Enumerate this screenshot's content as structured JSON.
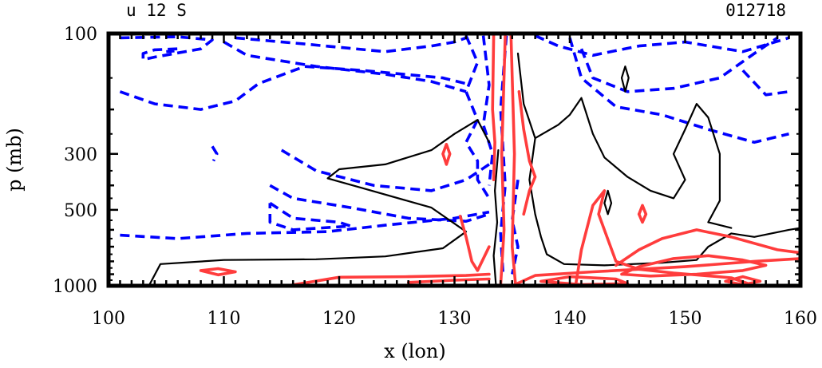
{
  "header": {
    "left": "u 12 S",
    "right": "012718"
  },
  "chart_data": {
    "type": "contour",
    "xlabel": "x (lon)",
    "ylabel": "p (mb)",
    "xlim": [
      100,
      160
    ],
    "ylim": [
      1000,
      100
    ],
    "yscale": "log",
    "x_ticks": [
      100,
      110,
      120,
      130,
      140,
      150,
      160
    ],
    "x_tick_labels": [
      "100",
      "110",
      "120",
      "130",
      "140",
      "150",
      "160"
    ],
    "y_ticks": [
      100,
      300,
      500,
      1000
    ],
    "y_tick_labels": [
      "100",
      "300",
      "500",
      "1000"
    ],
    "colors": {
      "negative": "#0000ff",
      "zero": "#000000",
      "positive": "#ff3c3c"
    },
    "contours": [
      {
        "sign": "negative",
        "style": "dashed",
        "points": [
          [
            101,
            104
          ],
          [
            106,
            103
          ],
          [
            109,
            106
          ],
          [
            108,
            115
          ],
          [
            104,
            124
          ],
          [
            103,
            127
          ],
          [
            103,
            120
          ],
          [
            104,
            116
          ],
          [
            106,
            115
          ],
          [
            106,
            117
          ],
          [
            105,
            118
          ]
        ]
      },
      {
        "sign": "negative",
        "style": "dashed",
        "points": [
          [
            101,
            170
          ],
          [
            104,
            190
          ],
          [
            108,
            200
          ],
          [
            111,
            185
          ],
          [
            113,
            158
          ],
          [
            117,
            135
          ],
          [
            122,
            140
          ],
          [
            129,
            150
          ],
          [
            131,
            158
          ]
        ]
      },
      {
        "sign": "negative",
        "style": "dashed",
        "points": [
          [
            111,
            104
          ],
          [
            117,
            110
          ],
          [
            124,
            118
          ],
          [
            128,
            112
          ],
          [
            130,
            108
          ],
          [
            131,
            104
          ]
        ]
      },
      {
        "sign": "negative",
        "style": "dashed",
        "points": [
          [
            110,
            108
          ],
          [
            112,
            122
          ],
          [
            118,
            135
          ],
          [
            124,
            145
          ],
          [
            128,
            155
          ],
          [
            131,
            170
          ]
        ]
      },
      {
        "sign": "negative",
        "style": "dashed",
        "points": [
          [
            101,
            630
          ],
          [
            106,
            650
          ],
          [
            112,
            620
          ],
          [
            119,
            610
          ],
          [
            124,
            575
          ],
          [
            130,
            540
          ],
          [
            133,
            510
          ]
        ]
      },
      {
        "sign": "negative",
        "style": "dashed",
        "points": [
          [
            114,
            400
          ],
          [
            116,
            450
          ],
          [
            121,
            490
          ],
          [
            126,
            540
          ],
          [
            131,
            555
          ],
          [
            133,
            520
          ]
        ]
      },
      {
        "sign": "negative",
        "style": "dashed",
        "points": [
          [
            115,
            290
          ],
          [
            118,
            350
          ],
          [
            123,
            400
          ],
          [
            128,
            420
          ],
          [
            131,
            380
          ],
          [
            133,
            330
          ]
        ]
      },
      {
        "sign": "negative",
        "style": "dashed",
        "points": [
          [
            114,
            470
          ],
          [
            116,
            540
          ],
          [
            120,
            560
          ],
          [
            121,
            580
          ],
          [
            116,
            600
          ],
          [
            114,
            560
          ],
          [
            114,
            470
          ]
        ]
      },
      {
        "sign": "negative",
        "style": "dashed",
        "points": [
          [
            131,
            102
          ],
          [
            132,
            130
          ],
          [
            131,
            170
          ],
          [
            132,
            220
          ],
          [
            131,
            270
          ],
          [
            132,
            320
          ],
          [
            132,
            380
          ],
          [
            133,
            450
          ]
        ]
      },
      {
        "sign": "negative",
        "style": "dashed",
        "points": [
          [
            132.5,
            102
          ],
          [
            133,
            160
          ],
          [
            132.5,
            230
          ],
          [
            133.3,
            300
          ],
          [
            133,
            400
          ]
        ]
      },
      {
        "sign": "negative",
        "style": "dashed",
        "points": [
          [
            134.5,
            102
          ],
          [
            134,
            200
          ],
          [
            134.4,
            400
          ],
          [
            134,
            620
          ],
          [
            134.2,
            880
          ]
        ]
      },
      {
        "sign": "negative",
        "style": "dashed",
        "points": [
          [
            135.5,
            380
          ],
          [
            135,
            550
          ],
          [
            135.5,
            700
          ],
          [
            135,
            900
          ]
        ]
      },
      {
        "sign": "negative",
        "style": "dashed",
        "points": [
          [
            137,
            102
          ],
          [
            139,
            112
          ],
          [
            142,
            122
          ],
          [
            146,
            112
          ],
          [
            150,
            108
          ],
          [
            155,
            118
          ],
          [
            159,
            104
          ]
        ]
      },
      {
        "sign": "negative",
        "style": "dashed",
        "points": [
          [
            140,
            104
          ],
          [
            141,
            150
          ],
          [
            144,
            195
          ],
          [
            148,
            210
          ],
          [
            152,
            240
          ],
          [
            156,
            270
          ],
          [
            159,
            250
          ]
        ]
      },
      {
        "sign": "negative",
        "style": "dashed",
        "points": [
          [
            141,
            115
          ],
          [
            142,
            150
          ],
          [
            145,
            170
          ],
          [
            149,
            165
          ],
          [
            153,
            150
          ],
          [
            156,
            120
          ],
          [
            158,
            104
          ]
        ]
      },
      {
        "sign": "negative",
        "style": "dashed",
        "points": [
          [
            155,
            140
          ],
          [
            157,
            175
          ],
          [
            159,
            170
          ]
        ]
      },
      {
        "sign": "negative",
        "style": "dashed",
        "points": [
          [
            109,
            280
          ],
          [
            109.4,
            300
          ],
          [
            109.1,
            320
          ]
        ]
      },
      {
        "sign": "zero",
        "style": "solid",
        "points": [
          [
            103.5,
            1000
          ],
          [
            104.5,
            820
          ],
          [
            110,
            790
          ],
          [
            118,
            785
          ],
          [
            124,
            765
          ],
          [
            129,
            710
          ],
          [
            131,
            610
          ],
          [
            128,
            490
          ],
          [
            122,
            410
          ],
          [
            119,
            375
          ],
          [
            120,
            345
          ],
          [
            124,
            330
          ],
          [
            128,
            290
          ],
          [
            130,
            250
          ],
          [
            132,
            220
          ],
          [
            133,
            270
          ]
        ]
      },
      {
        "sign": "zero",
        "style": "solid",
        "points": [
          [
            133.8,
            290
          ],
          [
            133.5,
            420
          ],
          [
            133.7,
            560
          ],
          [
            133.4,
            760
          ],
          [
            133.6,
            1000
          ]
        ]
      },
      {
        "sign": "zero",
        "style": "solid",
        "points": [
          [
            135.5,
            120
          ],
          [
            136,
            190
          ],
          [
            137,
            260
          ],
          [
            136.5,
            380
          ],
          [
            137,
            520
          ],
          [
            137.5,
            640
          ],
          [
            138,
            750
          ],
          [
            139.5,
            820
          ],
          [
            143,
            830
          ],
          [
            148,
            810
          ],
          [
            151,
            790
          ],
          [
            152,
            700
          ],
          [
            154,
            620
          ],
          [
            156,
            640
          ],
          [
            159,
            600
          ],
          [
            160,
            590
          ]
        ]
      },
      {
        "sign": "zero",
        "style": "solid",
        "points": [
          [
            137,
            260
          ],
          [
            139,
            230
          ],
          [
            140,
            210
          ],
          [
            141,
            180
          ],
          [
            142,
            250
          ],
          [
            143,
            310
          ],
          [
            145,
            370
          ],
          [
            147,
            420
          ],
          [
            149,
            450
          ],
          [
            150,
            380
          ],
          [
            149,
            300
          ],
          [
            150,
            240
          ],
          [
            151,
            190
          ],
          [
            152,
            215
          ],
          [
            153,
            300
          ],
          [
            153,
            460
          ],
          [
            152,
            560
          ],
          [
            154,
            590
          ]
        ]
      },
      {
        "sign": "zero",
        "style": "solid",
        "points": [
          [
            143,
            470
          ],
          [
            143.3,
            420
          ],
          [
            143.6,
            470
          ],
          [
            143.3,
            520
          ],
          [
            143,
            470
          ]
        ]
      },
      {
        "sign": "zero",
        "style": "solid",
        "points": [
          [
            144.5,
            150
          ],
          [
            144.8,
            135
          ],
          [
            145.1,
            150
          ],
          [
            144.8,
            170
          ],
          [
            144.5,
            150
          ]
        ]
      },
      {
        "sign": "positive",
        "style": "solid",
        "points": [
          [
            134,
            1000
          ],
          [
            134.3,
            600
          ],
          [
            134.1,
            300
          ],
          [
            134.4,
            102
          ]
        ]
      },
      {
        "sign": "positive",
        "style": "solid",
        "points": [
          [
            134.9,
            102
          ],
          [
            135.2,
            300
          ],
          [
            135,
            700
          ],
          [
            135.3,
            1000
          ]
        ]
      },
      {
        "sign": "positive",
        "style": "solid",
        "points": [
          [
            133.4,
            102
          ],
          [
            133.3,
            200
          ],
          [
            133.5,
            270
          ],
          [
            133.4,
            380
          ]
        ]
      },
      {
        "sign": "positive",
        "style": "solid",
        "points": [
          [
            135.6,
            170
          ],
          [
            136,
            240
          ],
          [
            136.5,
            320
          ],
          [
            137,
            370
          ],
          [
            136.5,
            420
          ],
          [
            136,
            520
          ]
        ]
      },
      {
        "sign": "positive",
        "style": "solid",
        "points": [
          [
            130.5,
            530
          ],
          [
            131,
            640
          ],
          [
            131.5,
            800
          ],
          [
            132,
            870
          ],
          [
            133,
            700
          ]
        ]
      },
      {
        "sign": "positive",
        "style": "solid",
        "points": [
          [
            129,
            300
          ],
          [
            129.3,
            275
          ],
          [
            129.6,
            300
          ],
          [
            129.3,
            330
          ],
          [
            129,
            300
          ]
        ]
      },
      {
        "sign": "positive",
        "style": "solid",
        "points": [
          [
            115.5,
            1000
          ],
          [
            120,
            925
          ],
          [
            126,
            920
          ],
          [
            131,
            910
          ],
          [
            133,
            900
          ]
        ]
      },
      {
        "sign": "positive",
        "style": "solid",
        "points": [
          [
            126,
            970
          ],
          [
            130,
            950
          ],
          [
            133,
            940
          ]
        ]
      },
      {
        "sign": "positive",
        "style": "solid",
        "points": [
          [
            108,
            870
          ],
          [
            109.5,
            855
          ],
          [
            111,
            880
          ],
          [
            109.5,
            905
          ],
          [
            108,
            870
          ]
        ]
      },
      {
        "sign": "positive",
        "style": "solid",
        "points": [
          [
            135,
            1000
          ],
          [
            137,
            910
          ],
          [
            142,
            880
          ],
          [
            150,
            840
          ],
          [
            156,
            800
          ],
          [
            160,
            780
          ]
        ]
      },
      {
        "sign": "positive",
        "style": "solid",
        "points": [
          [
            137.5,
            960
          ],
          [
            140,
            920
          ],
          [
            144,
            940
          ],
          [
            145,
            980
          ],
          [
            141,
            990
          ],
          [
            137.5,
            960
          ]
        ]
      },
      {
        "sign": "positive",
        "style": "solid",
        "points": [
          [
            140.5,
            1000
          ],
          [
            141,
            720
          ],
          [
            142,
            480
          ],
          [
            143,
            420
          ],
          [
            142.5,
            520
          ],
          [
            144,
            800
          ],
          [
            146,
            860
          ],
          [
            149,
            890
          ],
          [
            154,
            930
          ],
          [
            156,
            1000
          ]
        ]
      },
      {
        "sign": "positive",
        "style": "solid",
        "points": [
          [
            144,
            830
          ],
          [
            146,
            720
          ],
          [
            148,
            650
          ],
          [
            151,
            600
          ],
          [
            154,
            640
          ],
          [
            158,
            720
          ],
          [
            160,
            740
          ]
        ]
      },
      {
        "sign": "positive",
        "style": "solid",
        "points": [
          [
            144.5,
            900
          ],
          [
            146,
            840
          ],
          [
            149,
            780
          ],
          [
            152,
            760
          ],
          [
            155,
            790
          ],
          [
            157,
            830
          ],
          [
            155,
            870
          ],
          [
            151,
            900
          ],
          [
            147,
            915
          ],
          [
            144.5,
            900
          ]
        ]
      },
      {
        "sign": "positive",
        "style": "solid",
        "points": [
          [
            153.5,
            960
          ],
          [
            155,
            920
          ],
          [
            156.5,
            960
          ],
          [
            155,
            990
          ],
          [
            153.5,
            960
          ]
        ]
      },
      {
        "sign": "positive",
        "style": "solid",
        "points": [
          [
            146,
            520
          ],
          [
            146.3,
            480
          ],
          [
            146.6,
            520
          ],
          [
            146.3,
            560
          ],
          [
            146,
            520
          ]
        ]
      }
    ]
  }
}
